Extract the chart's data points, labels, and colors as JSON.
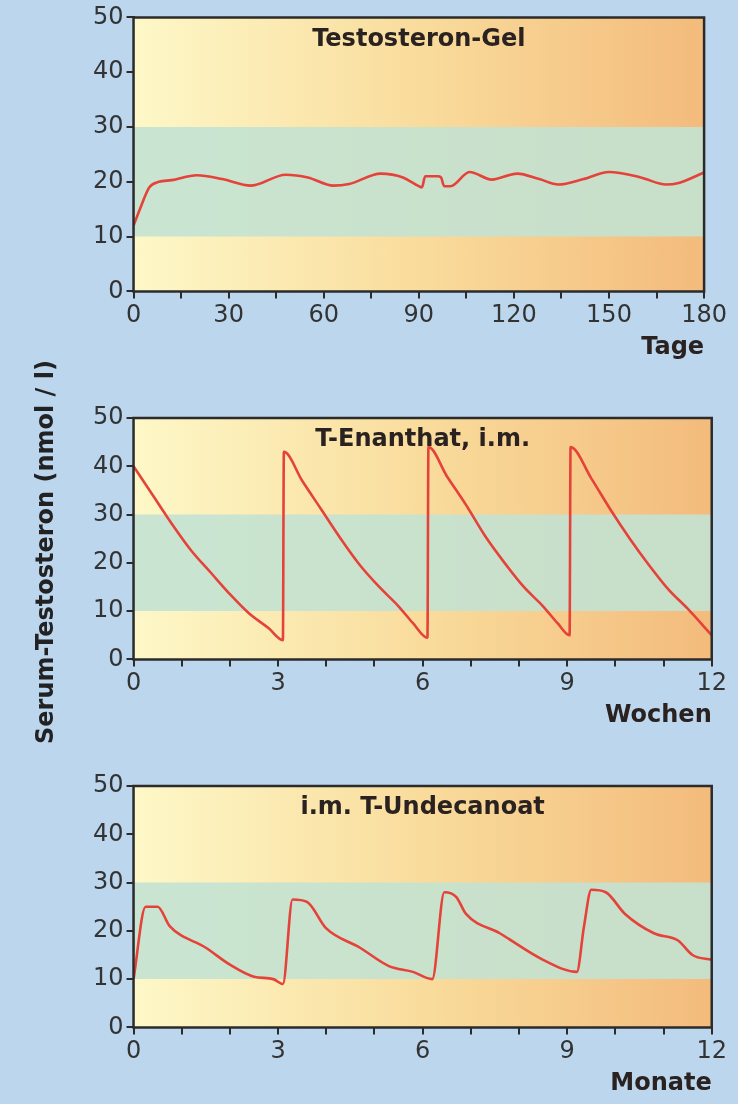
{
  "chart_data": [
    {
      "type": "line",
      "title": "Testosteron-Gel",
      "xlabel": "Tage",
      "color": "#e5423a",
      "x": [
        0,
        2,
        5,
        8,
        12,
        20,
        28,
        37,
        48,
        55,
        63,
        68,
        78,
        85,
        90,
        91,
        92,
        96,
        97,
        98,
        100,
        106,
        113,
        121,
        128,
        134,
        142,
        150,
        160,
        168,
        172,
        180
      ],
      "values": [
        12,
        15,
        19,
        20,
        20.3,
        21.2,
        20.5,
        19.3,
        21.3,
        20.8,
        19.3,
        19.6,
        21.5,
        20.8,
        19.2,
        19,
        21,
        21,
        20.8,
        19.2,
        19.2,
        21.8,
        20.4,
        21.5,
        20.5,
        19.5,
        20.5,
        21.8,
        20.8,
        19.5,
        19.8,
        21.7
      ],
      "xlim": [
        0,
        180
      ],
      "xticks": [
        0,
        {
          "value": 15,
          "label": null
        },
        30,
        {
          "value": 45,
          "label": null
        },
        60,
        {
          "value": 75,
          "label": null
        },
        90,
        {
          "value": 105,
          "label": null
        },
        120,
        {
          "value": 135,
          "label": null
        },
        150,
        {
          "value": 165,
          "label": null
        },
        180
      ],
      "ylim": [
        0,
        50
      ],
      "yticks": [
        0,
        10,
        20,
        30,
        40,
        50
      ],
      "bands": [
        {
          "axis": "y",
          "from": 10,
          "to": 30,
          "color": "#c3e2d2"
        }
      ]
    },
    {
      "type": "line",
      "title": "T-Enanthat, i.m.",
      "xlabel": "Wochen",
      "ylabel": "Serum-Testosteron (nmol / l)",
      "color": "#e5423a",
      "x": [
        0,
        0.4,
        0.8,
        1.2,
        1.6,
        2,
        2.4,
        2.8,
        3.1,
        3.12,
        3.5,
        3.9,
        4.3,
        4.7,
        5.1,
        5.5,
        5.8,
        6.1,
        6.12,
        6.5,
        6.9,
        7.3,
        7.7,
        8.1,
        8.5,
        8.8,
        9.05,
        9.07,
        9.5,
        9.9,
        10.3,
        10.7,
        11.1,
        11.5,
        12
      ],
      "values": [
        40,
        34,
        28,
        22.5,
        18,
        13.5,
        9.5,
        6.5,
        4,
        43,
        37,
        31,
        25,
        19.5,
        15,
        11,
        7.5,
        4.5,
        44,
        38,
        32,
        25.5,
        20,
        15,
        11,
        7.5,
        5,
        44,
        37.5,
        31,
        25,
        19.5,
        14.5,
        10.5,
        5
      ],
      "xlim": [
        0,
        12
      ],
      "xticks": [
        0,
        {
          "value": 1,
          "label": null
        },
        {
          "value": 2,
          "label": null
        },
        3,
        {
          "value": 4,
          "label": null
        },
        {
          "value": 5,
          "label": null
        },
        6,
        {
          "value": 7,
          "label": null
        },
        {
          "value": 8,
          "label": null
        },
        9,
        {
          "value": 10,
          "label": null
        },
        {
          "value": 11,
          "label": null
        },
        12
      ],
      "ylim": [
        0,
        50
      ],
      "yticks": [
        0,
        10,
        20,
        30,
        40,
        50
      ],
      "bands": [
        {
          "axis": "y",
          "from": 10,
          "to": 30,
          "color": "#c3e2d2"
        }
      ]
    },
    {
      "type": "line",
      "title": "i.m. T-Undecanoat",
      "xlabel": "Monate",
      "color": "#e5423a",
      "x": [
        0,
        0.25,
        0.5,
        0.75,
        1.5,
        2,
        2.5,
        2.9,
        3.1,
        3.3,
        3.6,
        4,
        4.7,
        5.3,
        5.8,
        6.2,
        6.45,
        6.7,
        6.9,
        7.6,
        8.5,
        9.2,
        9.35,
        9.5,
        9.8,
        10.2,
        10.8,
        11.3,
        11.6,
        12
      ],
      "values": [
        10,
        25,
        25,
        21,
        16.5,
        13,
        10.5,
        10,
        9,
        26.5,
        26,
        20.5,
        16.5,
        12.7,
        11.5,
        10,
        28,
        27,
        23.5,
        19.5,
        14,
        11.5,
        21,
        28.5,
        28,
        23.5,
        19.5,
        18,
        15,
        14
      ],
      "xlim": [
        0,
        12
      ],
      "xticks": [
        0,
        {
          "value": 1,
          "label": null
        },
        {
          "value": 2,
          "label": null
        },
        3,
        {
          "value": 4,
          "label": null
        },
        {
          "value": 5,
          "label": null
        },
        6,
        {
          "value": 7,
          "label": null
        },
        {
          "value": 8,
          "label": null
        },
        9,
        {
          "value": 10,
          "label": null
        },
        {
          "value": 11,
          "label": null
        },
        12
      ],
      "ylim": [
        0,
        50
      ],
      "yticks": [
        0,
        10,
        20,
        30,
        40,
        50
      ],
      "bands": [
        {
          "axis": "y",
          "from": 10,
          "to": 30,
          "color": "#c3e2d2"
        }
      ]
    }
  ]
}
